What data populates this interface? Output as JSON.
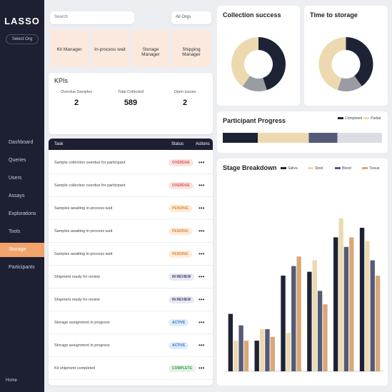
{
  "sidebar": {
    "logo": "LASSO",
    "org": "Select Org",
    "items": [
      "Dashboard",
      "Queries",
      "Users",
      "Assays",
      "Explorations",
      "Tools",
      "Storage",
      "Participants"
    ],
    "active": 6,
    "footer": "Home"
  },
  "search": "Search",
  "filter": "All Orgs",
  "tasks": [
    "Kit Manager",
    "In-process wait",
    "Storage Manager",
    "Shipping Manager"
  ],
  "kpis": {
    "title": "KPIs",
    "items": [
      {
        "label": "Overdue Samples",
        "value": "2"
      },
      {
        "label": "Total Collected",
        "value": "589"
      },
      {
        "label": "Open Issues",
        "value": "2"
      }
    ]
  },
  "table": {
    "header": [
      "Task",
      "Status",
      "Actions"
    ],
    "rows": [
      [
        "Sample collection overdue for participant",
        "OVERDUE"
      ],
      [
        "Sample collection overdue for participant",
        "OVERDUE"
      ],
      [
        "Samples awaiting in-process wait",
        "PENDING"
      ],
      [
        "Samples awaiting in-process wait",
        "PENDING"
      ],
      [
        "Samples awaiting in-process wait",
        "PENDING"
      ],
      [
        "Shipment ready for review",
        "IN REVIEW"
      ],
      [
        "Shipment ready for review",
        "IN REVIEW"
      ],
      [
        "Storage assignment in progress",
        "ACTIVE"
      ],
      [
        "Storage assignment in progress",
        "ACTIVE"
      ],
      [
        "Kit shipment completed",
        "COMPLETE"
      ]
    ]
  },
  "charts": [
    {
      "type": "donut",
      "title": "Collection success",
      "values": [
        45,
        15,
        40
      ],
      "colors": [
        "#1e2235",
        "#9a9ca3",
        "#ecd9b0"
      ]
    },
    {
      "type": "donut",
      "title": "Time to storage",
      "values": [
        40,
        15,
        45
      ],
      "colors": [
        "#1e2235",
        "#9a9ca3",
        "#ecd9b0"
      ]
    },
    {
      "type": "stacked-bar",
      "title": "Participant Progress",
      "values": [
        22,
        32,
        18,
        28
      ],
      "colors": [
        "#1e2235",
        "#ecd9b0",
        "#555a78",
        "#dcdde2"
      ],
      "legend": [
        "Completed",
        "Partial"
      ]
    },
    {
      "type": "bar",
      "title": "Stage Breakdown",
      "categories": [
        null,
        null,
        null,
        null,
        null,
        null
      ],
      "ylim": [
        0,
        100
      ],
      "series": [
        {
          "name": "Saliva",
          "color": "#1e2235",
          "values": [
            30,
            16,
            50,
            52,
            70,
            75
          ]
        },
        {
          "name": "Stool",
          "color": "#ecd9b0",
          "values": [
            16,
            22,
            20,
            58,
            80,
            68
          ]
        },
        {
          "name": "Blood",
          "color": "#555a78",
          "values": [
            24,
            22,
            55,
            42,
            65,
            58
          ]
        },
        {
          "name": "Tissue",
          "color": "#d9a877",
          "values": [
            16,
            18,
            60,
            35,
            70,
            50
          ]
        }
      ]
    }
  ]
}
